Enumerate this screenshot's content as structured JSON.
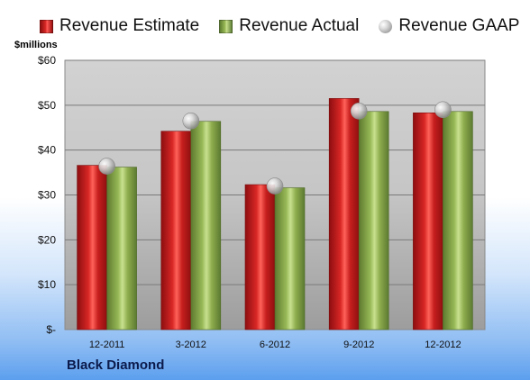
{
  "legend": {
    "estimate": "Revenue Estimate",
    "actual": "Revenue Actual",
    "gaap": "Revenue GAAP"
  },
  "y_unit": "$millions",
  "company": "Black Diamond",
  "colors": {
    "estimate": "#d62a28",
    "actual": "#9bbb59",
    "gaap": "#bfbfbf",
    "plot_top": "#cfcfcf",
    "plot_bottom": "#9a9a9a"
  },
  "chart_data": {
    "type": "bar",
    "categories": [
      "12-2011",
      "3-2012",
      "6-2012",
      "9-2012",
      "12-2012"
    ],
    "series": [
      {
        "name": "Revenue Estimate",
        "values": [
          36.6,
          44.2,
          32.3,
          51.5,
          48.3
        ]
      },
      {
        "name": "Revenue Actual",
        "values": [
          36.2,
          46.4,
          31.6,
          48.6,
          48.6
        ]
      },
      {
        "name": "Revenue GAAP",
        "values": [
          36.4,
          46.5,
          32.0,
          48.7,
          49.0
        ],
        "style": "marker"
      }
    ],
    "y_ticks": [
      "$-",
      "$10",
      "$20",
      "$30",
      "$40",
      "$50",
      "$60"
    ],
    "ylim": [
      0,
      60
    ],
    "grid": true,
    "legend_position": "top"
  }
}
